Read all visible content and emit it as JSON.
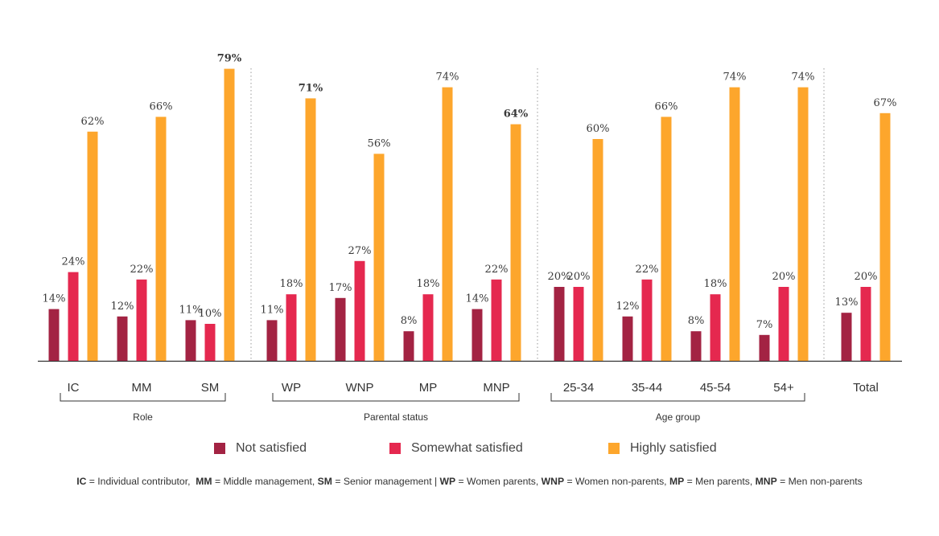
{
  "chart_data": {
    "type": "bar",
    "series": [
      {
        "name": "Not satisfied",
        "color": "#a32343"
      },
      {
        "name": "Somewhat satisfied",
        "color": "#e5284f"
      },
      {
        "name": "Highly satisfied",
        "color": "#fda62c"
      }
    ],
    "groups": [
      {
        "label": "Role",
        "categories": [
          {
            "label": "IC",
            "values": [
              14,
              24,
              62
            ],
            "labels": [
              "14%",
              "24%",
              "62%"
            ]
          },
          {
            "label": "MM",
            "values": [
              12,
              22,
              66
            ],
            "labels": [
              "12%",
              "22%",
              "66%"
            ]
          },
          {
            "label": "SM",
            "values": [
              11,
              10,
              79
            ],
            "labels": [
              "11%",
              "10%",
              "79%"
            ]
          }
        ]
      },
      {
        "label": "Parental status",
        "categories": [
          {
            "label": "WP",
            "values": [
              11,
              18,
              71
            ],
            "labels": [
              "11%",
              "18%",
              "71%"
            ]
          },
          {
            "label": "WNP",
            "values": [
              17,
              27,
              56
            ],
            "labels": [
              "17%",
              "27%",
              "56%"
            ]
          },
          {
            "label": "MP",
            "values": [
              8,
              18,
              74
            ],
            "labels": [
              "8%",
              "18%",
              "74%"
            ]
          },
          {
            "label": "MNP",
            "values": [
              14,
              22,
              64
            ],
            "labels": [
              "14%",
              "22%",
              "64%"
            ]
          }
        ]
      },
      {
        "label": "Age group",
        "categories": [
          {
            "label": "25-34",
            "values": [
              20,
              20,
              60
            ],
            "labels": [
              "20%",
              "20%",
              "60%"
            ]
          },
          {
            "label": "35-44",
            "values": [
              12,
              22,
              66
            ],
            "labels": [
              "12%",
              "22%",
              "66%"
            ]
          },
          {
            "label": "45-54",
            "values": [
              8,
              18,
              74
            ],
            "labels": [
              "8%",
              "18%",
              "74%"
            ]
          },
          {
            "label": "54+",
            "values": [
              7,
              20,
              74
            ],
            "labels": [
              "7%",
              "20%",
              "74%"
            ]
          }
        ]
      },
      {
        "label": "",
        "categories": [
          {
            "label": "Total",
            "values": [
              13,
              20,
              67
            ],
            "labels": [
              "13%",
              "20%",
              "67%"
            ]
          }
        ]
      }
    ],
    "ylim": [
      0,
      80
    ],
    "legend_position": "bottom",
    "grid": false
  },
  "legend": {
    "not_satisfied": "Not satisfied",
    "somewhat_satisfied": "Somewhat satisfied",
    "highly_satisfied": "Highly satisfied"
  },
  "footnote": {
    "ic_abbr": "IC",
    "ic_text": " = Individual contributor,  ",
    "mm_abbr": "MM",
    "mm_text": " = Middle management, ",
    "sm_abbr": "SM",
    "sm_text": " = Senior management | ",
    "wp_abbr": "WP",
    "wp_text": " = Women parents, ",
    "wnp_abbr": "WNP",
    "wnp_text": " = Women non-parents, ",
    "mp_abbr": "MP",
    "mp_text": " = Men parents, ",
    "mnp_abbr": "MNP",
    "mnp_text": " = Men non-parents"
  }
}
